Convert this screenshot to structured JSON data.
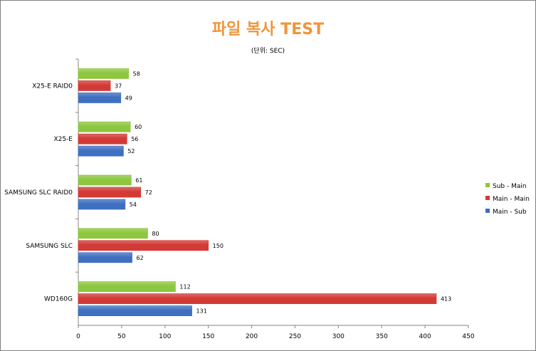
{
  "chart_data": {
    "type": "bar",
    "orientation": "horizontal",
    "title": "파일 복사 TEST",
    "subtitle": "(단위: SEC)",
    "categories": [
      "X25-E RAID0",
      "X25-E",
      "SAMSUNG SLC RAID0",
      "SAMSUNG SLC",
      "WD160G"
    ],
    "series": [
      {
        "name": "Sub - Main",
        "color": "#8dc63f",
        "values": [
          58,
          60,
          61,
          80,
          112
        ]
      },
      {
        "name": "Main - Main",
        "color": "#d23a36",
        "values": [
          37,
          56,
          72,
          150,
          413
        ]
      },
      {
        "name": "Main - Sub",
        "color": "#3f6fc0",
        "values": [
          49,
          52,
          54,
          62,
          131
        ]
      }
    ],
    "xlim": [
      0,
      450
    ],
    "xticks": [
      0,
      50,
      100,
      150,
      200,
      250,
      300,
      350,
      400,
      450
    ],
    "grid": false,
    "legend_position": "right"
  }
}
